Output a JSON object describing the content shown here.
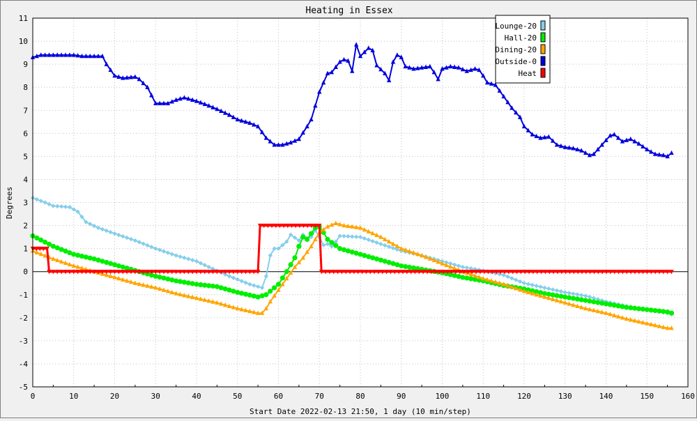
{
  "chart_data": {
    "type": "line",
    "title": "Heating in Essex",
    "xlabel": "Start Date 2022-02-13 21:50, 1 day (10 min/step)",
    "ylabel": "Degrees",
    "xlim": [
      0,
      160
    ],
    "ylim": [
      -5,
      11
    ],
    "xticks": [
      0,
      10,
      20,
      30,
      40,
      50,
      60,
      70,
      80,
      90,
      100,
      110,
      120,
      130,
      140,
      150,
      160
    ],
    "yticks": [
      -5,
      -4,
      -3,
      -2,
      -1,
      0,
      1,
      2,
      3,
      4,
      5,
      6,
      7,
      8,
      9,
      10,
      11
    ],
    "grid": true,
    "legend_position": "top-right",
    "series": [
      {
        "name": "Lounge-20",
        "color": "#87ceeb",
        "marker": "diamond",
        "points": [
          [
            0,
            3.2
          ],
          [
            3,
            3.0
          ],
          [
            5,
            2.85
          ],
          [
            9,
            2.8
          ],
          [
            11,
            2.6
          ],
          [
            13,
            2.15
          ],
          [
            16,
            1.9
          ],
          [
            20,
            1.65
          ],
          [
            25,
            1.35
          ],
          [
            30,
            1.0
          ],
          [
            35,
            0.7
          ],
          [
            40,
            0.45
          ],
          [
            43,
            0.2
          ],
          [
            48,
            -0.2
          ],
          [
            53,
            -0.55
          ],
          [
            56,
            -0.7
          ],
          [
            57,
            -0.2
          ],
          [
            58,
            0.7
          ],
          [
            59,
            1.0
          ],
          [
            60,
            1.0
          ],
          [
            62,
            1.3
          ],
          [
            63,
            1.6
          ],
          [
            65,
            1.35
          ],
          [
            66,
            1.6
          ],
          [
            67,
            1.45
          ],
          [
            68,
            1.5
          ],
          [
            69,
            1.8
          ],
          [
            70,
            1.5
          ],
          [
            71,
            1.15
          ],
          [
            72,
            1.2
          ],
          [
            73,
            1.1
          ],
          [
            74,
            1.3
          ],
          [
            75,
            1.55
          ],
          [
            80,
            1.5
          ],
          [
            85,
            1.2
          ],
          [
            90,
            0.9
          ],
          [
            95,
            0.7
          ],
          [
            100,
            0.45
          ],
          [
            105,
            0.2
          ],
          [
            110,
            0.05
          ],
          [
            115,
            -0.15
          ],
          [
            120,
            -0.5
          ],
          [
            125,
            -0.7
          ],
          [
            130,
            -0.9
          ],
          [
            135,
            -1.05
          ],
          [
            140,
            -1.3
          ],
          [
            145,
            -1.5
          ],
          [
            150,
            -1.65
          ],
          [
            155,
            -1.8
          ],
          [
            156,
            -1.85
          ]
        ]
      },
      {
        "name": "Hall-20",
        "color": "#00ee00",
        "marker": "circle",
        "points": [
          [
            0,
            1.55
          ],
          [
            5,
            1.1
          ],
          [
            10,
            0.75
          ],
          [
            15,
            0.55
          ],
          [
            20,
            0.3
          ],
          [
            25,
            0.05
          ],
          [
            30,
            -0.2
          ],
          [
            35,
            -0.4
          ],
          [
            40,
            -0.55
          ],
          [
            45,
            -0.65
          ],
          [
            50,
            -0.9
          ],
          [
            55,
            -1.1
          ],
          [
            57,
            -1.0
          ],
          [
            58,
            -0.85
          ],
          [
            60,
            -0.55
          ],
          [
            62,
            0.0
          ],
          [
            64,
            0.6
          ],
          [
            65,
            1.1
          ],
          [
            66,
            1.5
          ],
          [
            67,
            1.4
          ],
          [
            68,
            1.65
          ],
          [
            69,
            1.9
          ],
          [
            70,
            1.95
          ],
          [
            71,
            1.7
          ],
          [
            72,
            1.4
          ],
          [
            75,
            1.0
          ],
          [
            80,
            0.75
          ],
          [
            85,
            0.5
          ],
          [
            90,
            0.25
          ],
          [
            95,
            0.1
          ],
          [
            100,
            -0.05
          ],
          [
            105,
            -0.25
          ],
          [
            110,
            -0.4
          ],
          [
            115,
            -0.6
          ],
          [
            120,
            -0.75
          ],
          [
            125,
            -0.95
          ],
          [
            130,
            -1.1
          ],
          [
            135,
            -1.25
          ],
          [
            140,
            -1.4
          ],
          [
            145,
            -1.55
          ],
          [
            150,
            -1.65
          ],
          [
            155,
            -1.75
          ],
          [
            156,
            -1.8
          ]
        ]
      },
      {
        "name": "Dining-20",
        "color": "#ffa500",
        "marker": "triangle-up",
        "points": [
          [
            0,
            0.9
          ],
          [
            5,
            0.55
          ],
          [
            10,
            0.25
          ],
          [
            15,
            0.0
          ],
          [
            20,
            -0.25
          ],
          [
            25,
            -0.5
          ],
          [
            30,
            -0.7
          ],
          [
            35,
            -0.95
          ],
          [
            40,
            -1.15
          ],
          [
            45,
            -1.35
          ],
          [
            50,
            -1.6
          ],
          [
            55,
            -1.8
          ],
          [
            56,
            -1.8
          ],
          [
            57,
            -1.6
          ],
          [
            58,
            -1.3
          ],
          [
            60,
            -0.8
          ],
          [
            62,
            -0.3
          ],
          [
            64,
            0.2
          ],
          [
            66,
            0.6
          ],
          [
            68,
            1.1
          ],
          [
            70,
            1.7
          ],
          [
            72,
            1.95
          ],
          [
            74,
            2.1
          ],
          [
            76,
            2.0
          ],
          [
            80,
            1.9
          ],
          [
            85,
            1.5
          ],
          [
            90,
            1.0
          ],
          [
            95,
            0.7
          ],
          [
            100,
            0.35
          ],
          [
            105,
            0.0
          ],
          [
            110,
            -0.3
          ],
          [
            115,
            -0.55
          ],
          [
            120,
            -0.85
          ],
          [
            125,
            -1.1
          ],
          [
            130,
            -1.35
          ],
          [
            135,
            -1.6
          ],
          [
            140,
            -1.8
          ],
          [
            145,
            -2.05
          ],
          [
            150,
            -2.25
          ],
          [
            155,
            -2.45
          ],
          [
            156,
            -2.45
          ]
        ]
      },
      {
        "name": "Outside-0",
        "color": "#0000dd",
        "marker": "triangle-up",
        "points": [
          [
            0,
            9.3
          ],
          [
            2,
            9.4
          ],
          [
            5,
            9.4
          ],
          [
            10,
            9.4
          ],
          [
            12,
            9.35
          ],
          [
            15,
            9.35
          ],
          [
            17,
            9.35
          ],
          [
            18,
            9.0
          ],
          [
            20,
            8.5
          ],
          [
            22,
            8.4
          ],
          [
            25,
            8.45
          ],
          [
            26,
            8.35
          ],
          [
            28,
            8.0
          ],
          [
            30,
            7.3
          ],
          [
            33,
            7.3
          ],
          [
            35,
            7.45
          ],
          [
            37,
            7.55
          ],
          [
            40,
            7.4
          ],
          [
            43,
            7.2
          ],
          [
            45,
            7.05
          ],
          [
            48,
            6.8
          ],
          [
            50,
            6.6
          ],
          [
            53,
            6.45
          ],
          [
            55,
            6.3
          ],
          [
            57,
            5.8
          ],
          [
            59,
            5.5
          ],
          [
            61,
            5.5
          ],
          [
            63,
            5.6
          ],
          [
            65,
            5.75
          ],
          [
            67,
            6.3
          ],
          [
            68,
            6.6
          ],
          [
            69,
            7.2
          ],
          [
            70,
            7.8
          ],
          [
            71,
            8.2
          ],
          [
            72,
            8.6
          ],
          [
            73,
            8.65
          ],
          [
            75,
            9.1
          ],
          [
            76,
            9.2
          ],
          [
            77,
            9.15
          ],
          [
            78,
            8.7
          ],
          [
            79,
            9.85
          ],
          [
            80,
            9.35
          ],
          [
            82,
            9.7
          ],
          [
            83,
            9.6
          ],
          [
            84,
            8.95
          ],
          [
            86,
            8.6
          ],
          [
            87,
            8.3
          ],
          [
            88,
            9.1
          ],
          [
            89,
            9.4
          ],
          [
            90,
            9.3
          ],
          [
            91,
            8.9
          ],
          [
            93,
            8.8
          ],
          [
            95,
            8.85
          ],
          [
            97,
            8.9
          ],
          [
            98,
            8.65
          ],
          [
            99,
            8.35
          ],
          [
            100,
            8.8
          ],
          [
            102,
            8.9
          ],
          [
            104,
            8.85
          ],
          [
            106,
            8.7
          ],
          [
            108,
            8.8
          ],
          [
            109,
            8.75
          ],
          [
            110,
            8.5
          ],
          [
            111,
            8.2
          ],
          [
            113,
            8.1
          ],
          [
            115,
            7.6
          ],
          [
            117,
            7.1
          ],
          [
            119,
            6.7
          ],
          [
            120,
            6.3
          ],
          [
            122,
            5.95
          ],
          [
            124,
            5.8
          ],
          [
            126,
            5.85
          ],
          [
            128,
            5.5
          ],
          [
            130,
            5.4
          ],
          [
            132,
            5.35
          ],
          [
            134,
            5.25
          ],
          [
            136,
            5.05
          ],
          [
            137,
            5.1
          ],
          [
            139,
            5.5
          ],
          [
            141,
            5.9
          ],
          [
            142,
            5.95
          ],
          [
            144,
            5.65
          ],
          [
            146,
            5.75
          ],
          [
            148,
            5.55
          ],
          [
            150,
            5.3
          ],
          [
            152,
            5.1
          ],
          [
            154,
            5.05
          ],
          [
            155,
            5.0
          ],
          [
            156,
            5.15
          ]
        ]
      },
      {
        "name": "Heat",
        "color": "#ff0000",
        "marker": "triangle-down",
        "points": [
          [
            0,
            1.0
          ],
          [
            3.5,
            1.0
          ],
          [
            4,
            0.0
          ],
          [
            55,
            0.0
          ],
          [
            55.5,
            2.0
          ],
          [
            70,
            2.0
          ],
          [
            70.5,
            0.0
          ],
          [
            156,
            0.0
          ]
        ]
      }
    ]
  }
}
